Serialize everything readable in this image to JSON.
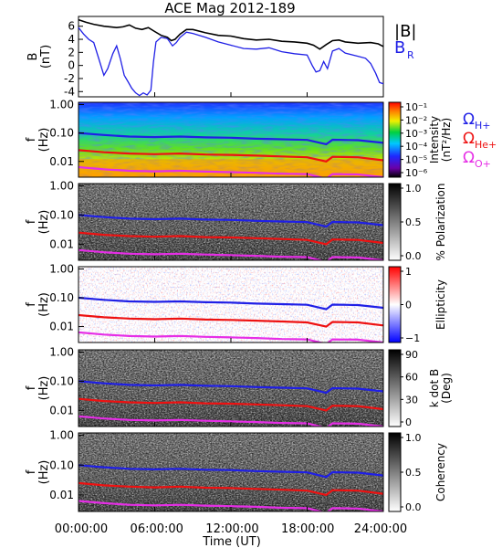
{
  "chart_data": {
    "type": "line",
    "title": "ACE Mag 2012-189",
    "xlabel": "Time (UT)",
    "x_ticks": [
      "00:00:00",
      "06:00:00",
      "12:00:00",
      "18:00:00",
      "24:00:00"
    ],
    "x_range_hours": [
      0,
      24
    ],
    "panels": [
      {
        "id": "field",
        "ylabel_top": "B",
        "ylabel_unit": "(nT)",
        "y_ticks": [
          "6",
          "4",
          "2",
          "0",
          "-2",
          "-4"
        ],
        "y_values": [
          6,
          4,
          2,
          0,
          -2,
          -4
        ],
        "ylim": [
          -4.8,
          7.5
        ],
        "series": [
          {
            "name": "|B|",
            "color": "#000000",
            "points": [
              [
                0,
                7.0
              ],
              [
                0.6,
                6.6
              ],
              [
                1.2,
                6.3
              ],
              [
                2,
                6.0
              ],
              [
                3,
                5.8
              ],
              [
                3.5,
                5.9
              ],
              [
                4,
                6.2
              ],
              [
                4.5,
                5.7
              ],
              [
                5,
                5.5
              ],
              [
                5.5,
                5.8
              ],
              [
                6,
                5.2
              ],
              [
                6.5,
                4.6
              ],
              [
                7,
                4.3
              ],
              [
                7.3,
                3.8
              ],
              [
                7.6,
                4.0
              ],
              [
                8,
                4.8
              ],
              [
                8.5,
                5.5
              ],
              [
                9,
                5.5
              ],
              [
                10,
                5.0
              ],
              [
                11,
                4.6
              ],
              [
                12,
                4.5
              ],
              [
                13,
                4.1
              ],
              [
                14,
                3.9
              ],
              [
                15,
                4.0
              ],
              [
                16,
                3.7
              ],
              [
                17,
                3.6
              ],
              [
                18,
                3.4
              ],
              [
                18.5,
                3.1
              ],
              [
                19,
                2.5
              ],
              [
                19.5,
                3.2
              ],
              [
                20,
                3.8
              ],
              [
                20.5,
                3.9
              ],
              [
                21,
                3.6
              ],
              [
                22,
                3.4
              ],
              [
                23,
                3.5
              ],
              [
                23.6,
                3.3
              ],
              [
                24,
                2.9
              ]
            ]
          },
          {
            "name": "B",
            "name_sub": "R",
            "color": "#1f1fe6",
            "points": [
              [
                0,
                5.8
              ],
              [
                0.4,
                4.8
              ],
              [
                0.8,
                4.0
              ],
              [
                1.2,
                3.5
              ],
              [
                1.6,
                1.0
              ],
              [
                2.0,
                -1.5
              ],
              [
                2.3,
                -0.5
              ],
              [
                2.7,
                1.8
              ],
              [
                3.0,
                3.0
              ],
              [
                3.3,
                1.0
              ],
              [
                3.6,
                -1.5
              ],
              [
                3.9,
                -2.5
              ],
              [
                4.2,
                -3.5
              ],
              [
                4.5,
                -4.2
              ],
              [
                4.8,
                -4.6
              ],
              [
                5.1,
                -4.2
              ],
              [
                5.4,
                -4.5
              ],
              [
                5.7,
                -3.8
              ],
              [
                5.9,
                0.5
              ],
              [
                6.1,
                3.6
              ],
              [
                6.5,
                4.3
              ],
              [
                7,
                4.1
              ],
              [
                7.4,
                3.0
              ],
              [
                7.7,
                3.5
              ],
              [
                8,
                4.3
              ],
              [
                8.5,
                5.1
              ],
              [
                9,
                4.9
              ],
              [
                10,
                4.3
              ],
              [
                11,
                3.6
              ],
              [
                12,
                3.1
              ],
              [
                13,
                2.6
              ],
              [
                14,
                2.5
              ],
              [
                15,
                2.7
              ],
              [
                16,
                2.1
              ],
              [
                17,
                1.8
              ],
              [
                18,
                1.6
              ],
              [
                18.4,
                0.0
              ],
              [
                18.7,
                -1.0
              ],
              [
                19,
                -0.8
              ],
              [
                19.3,
                0.6
              ],
              [
                19.6,
                -0.5
              ],
              [
                20,
                2.2
              ],
              [
                20.5,
                2.6
              ],
              [
                21,
                1.9
              ],
              [
                22,
                1.4
              ],
              [
                22.6,
                1.1
              ],
              [
                23,
                0.3
              ],
              [
                23.4,
                -1.2
              ],
              [
                23.7,
                -2.6
              ],
              [
                24,
                -2.8
              ]
            ]
          }
        ]
      },
      {
        "id": "intensity",
        "ylabel_top": "f",
        "ylabel_unit": "(Hz)",
        "y_ticks": [
          "1.00",
          "0.10",
          "0.01"
        ],
        "colorbar_label": "Intensity",
        "colorbar_unit": "(nT²/Hz)",
        "colorbar_ticks": [
          "10⁻¹",
          "10⁻²",
          "10⁻³",
          "10⁻⁴",
          "10⁻⁵",
          "10⁻⁶"
        ]
      },
      {
        "id": "polarization",
        "ylabel_top": "f",
        "ylabel_unit": "(Hz)",
        "y_ticks": [
          "1.00",
          "0.10",
          "0.01"
        ],
        "colorbar_label": "% Polarization",
        "colorbar_ticks": [
          "1.0",
          "0.5",
          "0.0"
        ]
      },
      {
        "id": "ellipticity",
        "ylabel_top": "f",
        "ylabel_unit": "(Hz)",
        "y_ticks": [
          "1.00",
          "0.10",
          "0.01"
        ],
        "colorbar_label": "Ellipticity",
        "colorbar_ticks": [
          "1",
          "0",
          "−1"
        ]
      },
      {
        "id": "kdotb",
        "ylabel_top": "f",
        "ylabel_unit": "(Hz)",
        "y_ticks": [
          "1.00",
          "0.10",
          "0.01"
        ],
        "colorbar_label": "k dot B",
        "colorbar_unit": "(Deg)",
        "colorbar_ticks": [
          "90",
          "60",
          "30",
          "0"
        ]
      },
      {
        "id": "coherency",
        "ylabel_top": "f",
        "ylabel_unit": "(Hz)",
        "y_ticks": [
          "1.00",
          "0.10",
          "0.01"
        ],
        "colorbar_label": "Coherency",
        "colorbar_ticks": [
          "1.0",
          "0.5",
          "0.0"
        ]
      }
    ],
    "gyrofrequency_legend": [
      {
        "symbol": "Ω",
        "sub": "H+",
        "color": "#1f1fe6"
      },
      {
        "symbol": "Ω",
        "sub": "He+",
        "color": "#ee1111"
      },
      {
        "symbol": "Ω",
        "sub": "O+",
        "color": "#e62ee6"
      }
    ],
    "gyrofrequency_hz": {
      "H+": [
        [
          0,
          0.1
        ],
        [
          2,
          0.085
        ],
        [
          4,
          0.075
        ],
        [
          6,
          0.072
        ],
        [
          8,
          0.075
        ],
        [
          10,
          0.07
        ],
        [
          12,
          0.068
        ],
        [
          14,
          0.063
        ],
        [
          16,
          0.06
        ],
        [
          18,
          0.057
        ],
        [
          19.5,
          0.04
        ],
        [
          20,
          0.058
        ],
        [
          22,
          0.056
        ],
        [
          24,
          0.045
        ]
      ],
      "He+": [
        [
          0,
          0.025
        ],
        [
          2,
          0.021
        ],
        [
          4,
          0.019
        ],
        [
          6,
          0.018
        ],
        [
          8,
          0.019
        ],
        [
          10,
          0.0175
        ],
        [
          12,
          0.017
        ],
        [
          14,
          0.016
        ],
        [
          16,
          0.015
        ],
        [
          18,
          0.014
        ],
        [
          19.5,
          0.01
        ],
        [
          20,
          0.0145
        ],
        [
          22,
          0.014
        ],
        [
          24,
          0.011
        ]
      ],
      "O+": [
        [
          0,
          0.0063
        ],
        [
          2,
          0.0053
        ],
        [
          4,
          0.0047
        ],
        [
          6,
          0.0045
        ],
        [
          8,
          0.0047
        ],
        [
          10,
          0.0044
        ],
        [
          12,
          0.0042
        ],
        [
          14,
          0.004
        ],
        [
          16,
          0.0037
        ],
        [
          18,
          0.0036
        ],
        [
          19.5,
          0.0025
        ],
        [
          20,
          0.0036
        ],
        [
          22,
          0.0035
        ],
        [
          24,
          0.0028
        ]
      ]
    }
  }
}
